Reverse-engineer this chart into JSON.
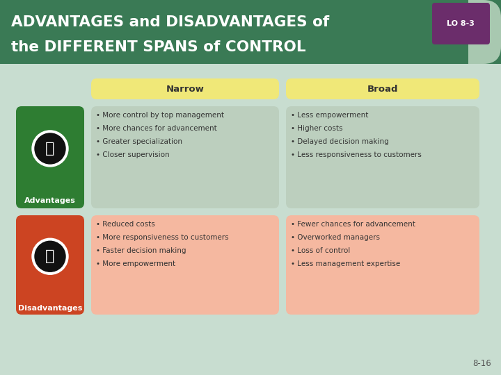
{
  "title_line1": "ADVANTAGES and DISADVANTAGES of",
  "title_line2": "the DIFFERENT SPANS of CONTROL",
  "lo_label": "LO 8-3",
  "bg_color": "#c8ddd0",
  "header_bg": "#3a7a55",
  "lo_bg": "#6b2d6b",
  "lo_text_color": "#ffffff",
  "title_color": "#ffffff",
  "narrow_label": "Narrow",
  "broad_label": "Broad",
  "header_cell_color": "#f0e878",
  "adv_label": "Advantages",
  "disadv_label": "Disadvantages",
  "adv_icon_bg": "#2e7d32",
  "disadv_icon_bg": "#cc4422",
  "adv_cell_color": "#bccfbe",
  "disadv_cell_color": "#f5b8a0",
  "adv_narrow_items": [
    "More control by top management",
    "More chances for advancement",
    "Greater specialization",
    "Closer supervision"
  ],
  "adv_broad_items": [
    "Less empowerment",
    "Higher costs",
    "Delayed decision making",
    "Less responsiveness to customers"
  ],
  "disadv_narrow_items": [
    "Reduced costs",
    "More responsiveness to customers",
    "Faster decision making",
    "More empowerment"
  ],
  "disadv_broad_items": [
    "Fewer chances for advancement",
    "Overworked managers",
    "Loss of control",
    "Less management expertise"
  ],
  "footer_text": "8-16",
  "cell_text_color": "#333333",
  "cell_header_text_color": "#333333"
}
